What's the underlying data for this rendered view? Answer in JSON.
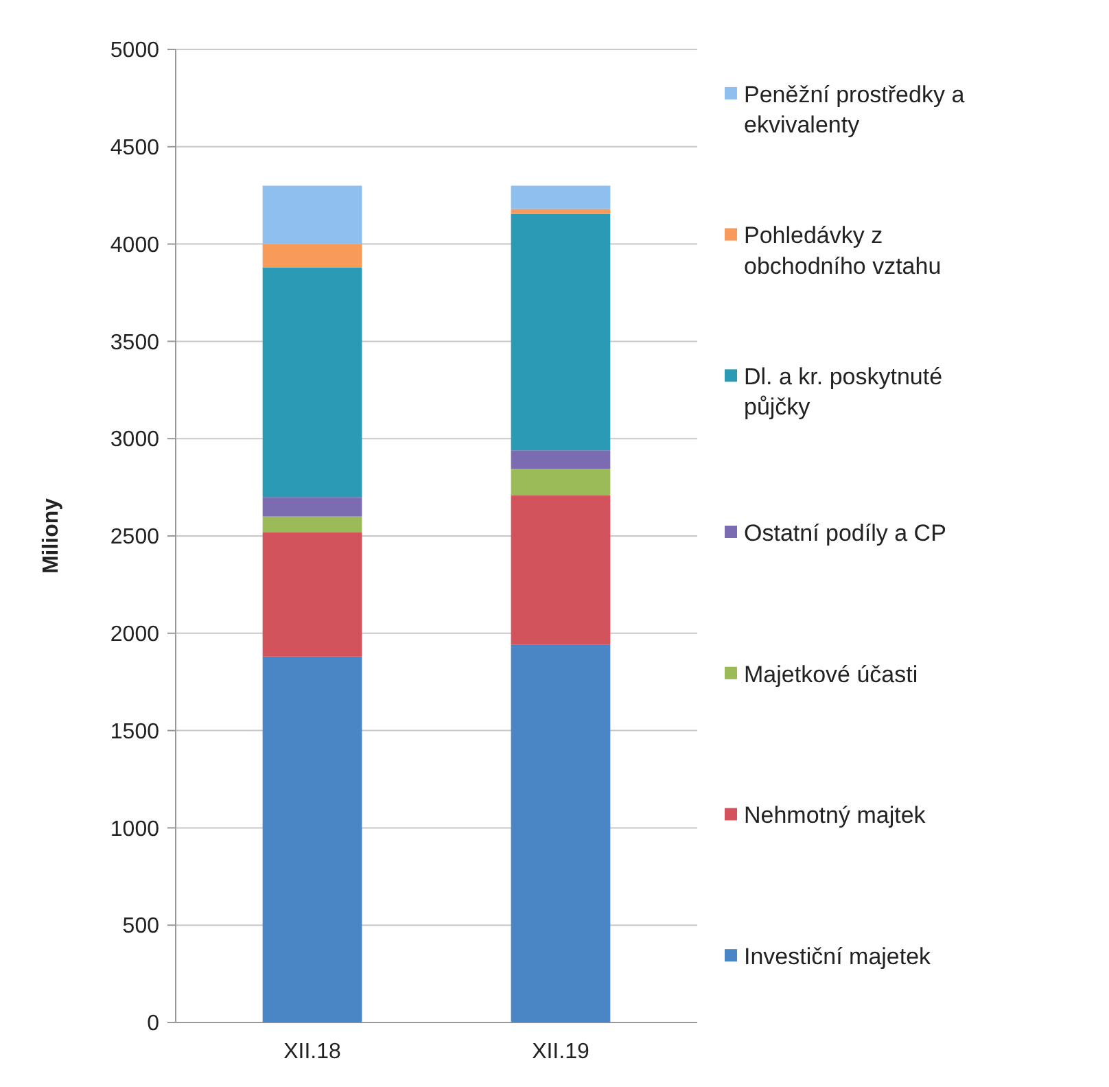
{
  "chart_data": {
    "type": "bar",
    "stacked": true,
    "ylabel": "Miliony",
    "categories": [
      "XII.18",
      "XII.19"
    ],
    "ylim": [
      0,
      5000
    ],
    "yticks": [
      0,
      500,
      1000,
      1500,
      2000,
      2500,
      3000,
      3500,
      4000,
      4500,
      5000
    ],
    "grid": "y",
    "legend": "right",
    "series": [
      {
        "name": "Investiční majetek",
        "color": "#4a86c5",
        "values": [
          1880,
          1940
        ]
      },
      {
        "name": "Nehmotný majtek",
        "color": "#d2535c",
        "values": [
          640,
          770
        ]
      },
      {
        "name": "Majetkové účasti",
        "color": "#9bbb59",
        "values": [
          80,
          135
        ]
      },
      {
        "name": "Ostatní podíly a CP",
        "color": "#7b6bb0",
        "values": [
          100,
          95
        ]
      },
      {
        "name": "Dl. a kr. poskytnuté půjčky",
        "color": "#2b9bb5",
        "values": [
          1180,
          1215
        ]
      },
      {
        "name": "Pohledávky z obchodního vztahu",
        "color": "#f79a5a",
        "values": [
          120,
          25
        ]
      },
      {
        "name": "Peněžní prostředky a ekvivalenty",
        "color": "#8fbfee",
        "values": [
          300,
          120
        ]
      }
    ]
  }
}
